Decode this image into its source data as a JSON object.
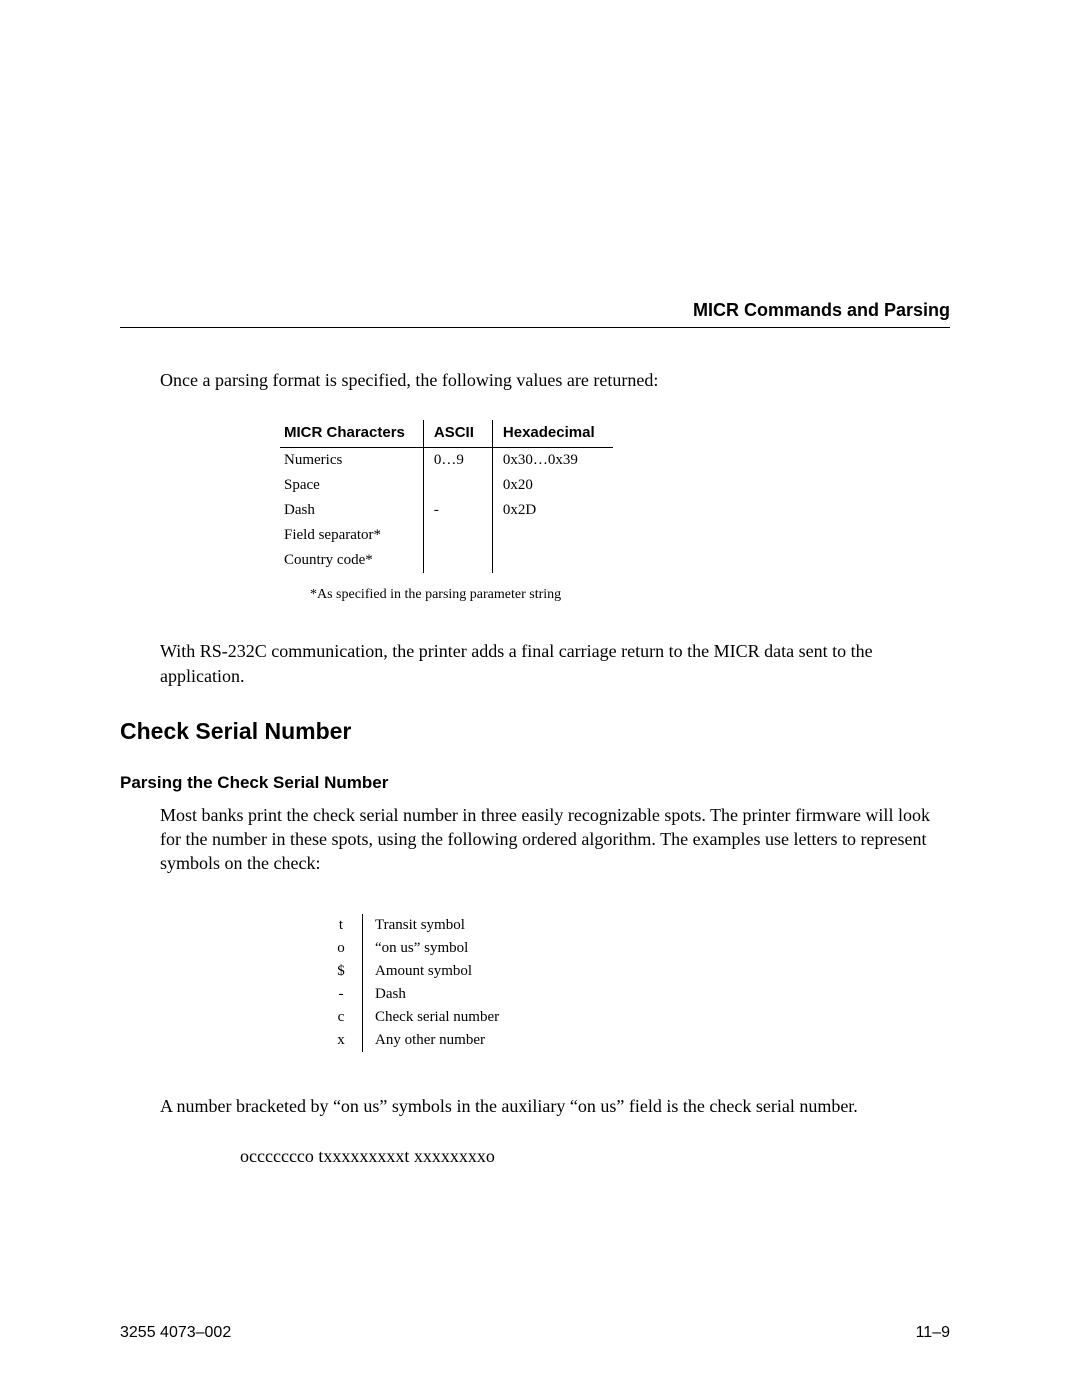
{
  "header": {
    "title": "MICR Commands and Parsing"
  },
  "intro_text": "Once a parsing format is specified, the following values are returned:",
  "micr_table": {
    "columns": [
      "MICR Characters",
      "ASCII",
      "Hexadecimal"
    ],
    "rows": [
      [
        "Numerics",
        "0…9",
        "0x30…0x39"
      ],
      [
        "Space",
        "",
        "0x20"
      ],
      [
        "Dash",
        "-",
        "0x2D"
      ],
      [
        "Field separator*",
        "",
        ""
      ],
      [
        "Country code*",
        "",
        ""
      ]
    ],
    "note": "*As specified in the parsing parameter string"
  },
  "rs232_text": "With RS-232C communication, the printer adds a final carriage return to the MICR data sent to the application.",
  "section": {
    "title": "Check Serial Number",
    "subsection_title": "Parsing the Check Serial Number",
    "subsection_text": "Most banks print the check serial number in three easily recognizable spots. The printer firmware will look for the number in these spots, using the following ordered algorithm. The examples use letters to represent symbols on the check:"
  },
  "symbol_table": {
    "rows": [
      [
        "t",
        "Transit symbol"
      ],
      [
        "o",
        "“on us” symbol"
      ],
      [
        "$",
        "Amount symbol"
      ],
      [
        "-",
        "Dash"
      ],
      [
        "c",
        "Check serial number"
      ],
      [
        "x",
        "Any other number"
      ]
    ]
  },
  "closing_text": "A number bracketed by “on us” symbols in the auxiliary “on us” field is the check serial number.",
  "example_line": "occccccco txxxxxxxxxt xxxxxxxxo",
  "footer": {
    "left": "3255 4073–002",
    "right": "11–9"
  }
}
